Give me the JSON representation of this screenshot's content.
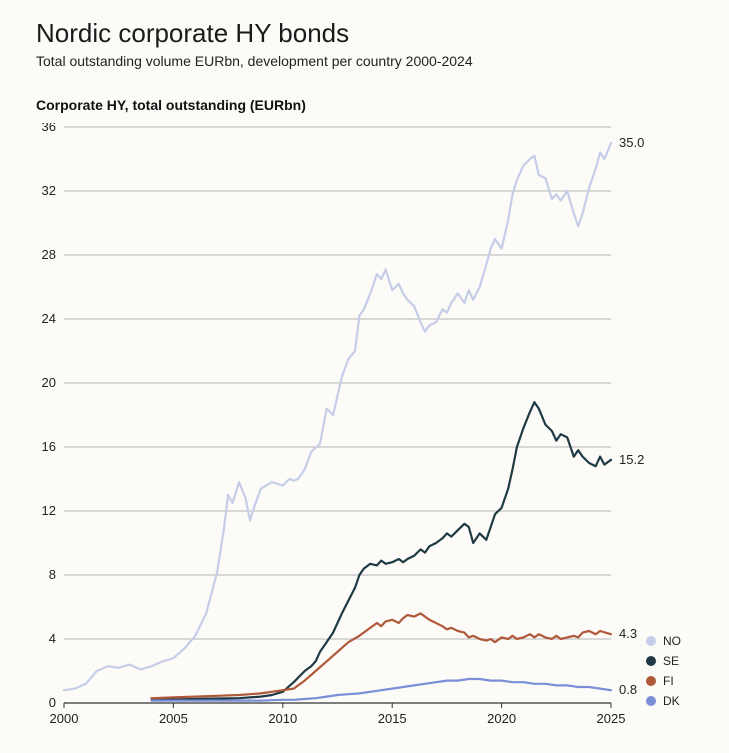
{
  "header": {
    "title": "Nordic corporate HY bonds",
    "subtitle": "Total outstanding volume EURbn, development per country 2000-2024"
  },
  "chart": {
    "type": "line",
    "title": "Corporate HY, total outstanding (EURbn)",
    "background_color": "#fcfbf8",
    "grid_color": "#b5b5b5",
    "axis_color": "#333333",
    "label_fontsize": 13,
    "title_fontsize": 14,
    "line_width": 2.2,
    "xlim": [
      2000,
      2025
    ],
    "ylim": [
      0,
      36
    ],
    "yticks": [
      0,
      4,
      8,
      12,
      16,
      20,
      24,
      28,
      32,
      36
    ],
    "xticks": [
      2000,
      2005,
      2010,
      2015,
      2020,
      2025
    ],
    "legend_position": "bottom-right",
    "series": [
      {
        "id": "NO",
        "label": "NO",
        "color": "#c6cde8",
        "end_value": "35.0",
        "points": [
          [
            2000,
            0.8
          ],
          [
            2000.5,
            0.9
          ],
          [
            2001,
            1.2
          ],
          [
            2001.5,
            2.0
          ],
          [
            2002,
            2.3
          ],
          [
            2002.5,
            2.2
          ],
          [
            2003,
            2.4
          ],
          [
            2003.5,
            2.1
          ],
          [
            2004,
            2.3
          ],
          [
            2004.5,
            2.6
          ],
          [
            2005,
            2.8
          ],
          [
            2005.5,
            3.4
          ],
          [
            2006,
            4.2
          ],
          [
            2006.5,
            5.6
          ],
          [
            2007,
            8.2
          ],
          [
            2007.3,
            10.8
          ],
          [
            2007.5,
            13.0
          ],
          [
            2007.7,
            12.5
          ],
          [
            2008,
            13.8
          ],
          [
            2008.3,
            12.8
          ],
          [
            2008.5,
            11.4
          ],
          [
            2008.7,
            12.3
          ],
          [
            2009,
            13.4
          ],
          [
            2009.5,
            13.8
          ],
          [
            2010,
            13.6
          ],
          [
            2010.3,
            14.0
          ],
          [
            2010.5,
            13.9
          ],
          [
            2010.7,
            14.0
          ],
          [
            2011,
            14.6
          ],
          [
            2011.3,
            15.7
          ],
          [
            2011.7,
            16.2
          ],
          [
            2012,
            18.4
          ],
          [
            2012.3,
            18.0
          ],
          [
            2012.5,
            19.2
          ],
          [
            2012.7,
            20.4
          ],
          [
            2013,
            21.5
          ],
          [
            2013.3,
            22.0
          ],
          [
            2013.5,
            24.2
          ],
          [
            2013.7,
            24.6
          ],
          [
            2014,
            25.6
          ],
          [
            2014.3,
            26.8
          ],
          [
            2014.5,
            26.5
          ],
          [
            2014.7,
            27.1
          ],
          [
            2015,
            25.8
          ],
          [
            2015.3,
            26.2
          ],
          [
            2015.5,
            25.6
          ],
          [
            2015.7,
            25.2
          ],
          [
            2016,
            24.8
          ],
          [
            2016.3,
            23.8
          ],
          [
            2016.5,
            23.2
          ],
          [
            2016.7,
            23.6
          ],
          [
            2017,
            23.8
          ],
          [
            2017.3,
            24.6
          ],
          [
            2017.5,
            24.4
          ],
          [
            2017.7,
            25.0
          ],
          [
            2018,
            25.6
          ],
          [
            2018.3,
            25.0
          ],
          [
            2018.5,
            25.8
          ],
          [
            2018.7,
            25.2
          ],
          [
            2019,
            26.0
          ],
          [
            2019.3,
            27.4
          ],
          [
            2019.5,
            28.4
          ],
          [
            2019.7,
            29.0
          ],
          [
            2020,
            28.4
          ],
          [
            2020.3,
            30.2
          ],
          [
            2020.5,
            31.8
          ],
          [
            2020.7,
            32.7
          ],
          [
            2021,
            33.6
          ],
          [
            2021.3,
            34.0
          ],
          [
            2021.5,
            34.2
          ],
          [
            2021.7,
            33.0
          ],
          [
            2022,
            32.8
          ],
          [
            2022.3,
            31.5
          ],
          [
            2022.5,
            31.8
          ],
          [
            2022.7,
            31.4
          ],
          [
            2023,
            32.0
          ],
          [
            2023.3,
            30.6
          ],
          [
            2023.5,
            29.8
          ],
          [
            2023.7,
            30.6
          ],
          [
            2024,
            32.2
          ],
          [
            2024.3,
            33.4
          ],
          [
            2024.5,
            34.4
          ],
          [
            2024.7,
            34.0
          ],
          [
            2025,
            35.0
          ]
        ]
      },
      {
        "id": "SE",
        "label": "SE",
        "color": "#1f3a44",
        "end_value": "15.2",
        "points": [
          [
            2004,
            0.25
          ],
          [
            2005,
            0.22
          ],
          [
            2006,
            0.25
          ],
          [
            2007,
            0.28
          ],
          [
            2008,
            0.3
          ],
          [
            2008.5,
            0.35
          ],
          [
            2009,
            0.4
          ],
          [
            2009.5,
            0.5
          ],
          [
            2010,
            0.7
          ],
          [
            2010.5,
            1.3
          ],
          [
            2011,
            2.0
          ],
          [
            2011.3,
            2.3
          ],
          [
            2011.5,
            2.6
          ],
          [
            2011.7,
            3.2
          ],
          [
            2012,
            3.8
          ],
          [
            2012.3,
            4.4
          ],
          [
            2012.5,
            5.0
          ],
          [
            2012.7,
            5.6
          ],
          [
            2013,
            6.4
          ],
          [
            2013.3,
            7.2
          ],
          [
            2013.5,
            8.0
          ],
          [
            2013.7,
            8.4
          ],
          [
            2014,
            8.7
          ],
          [
            2014.3,
            8.6
          ],
          [
            2014.5,
            8.9
          ],
          [
            2014.7,
            8.7
          ],
          [
            2015,
            8.8
          ],
          [
            2015.3,
            9.0
          ],
          [
            2015.5,
            8.8
          ],
          [
            2015.7,
            9.0
          ],
          [
            2016,
            9.2
          ],
          [
            2016.3,
            9.6
          ],
          [
            2016.5,
            9.4
          ],
          [
            2016.7,
            9.8
          ],
          [
            2017,
            10.0
          ],
          [
            2017.3,
            10.3
          ],
          [
            2017.5,
            10.6
          ],
          [
            2017.7,
            10.4
          ],
          [
            2018,
            10.8
          ],
          [
            2018.3,
            11.2
          ],
          [
            2018.5,
            11.0
          ],
          [
            2018.7,
            10.0
          ],
          [
            2019,
            10.6
          ],
          [
            2019.3,
            10.2
          ],
          [
            2019.5,
            11.0
          ],
          [
            2019.7,
            11.8
          ],
          [
            2020,
            12.2
          ],
          [
            2020.3,
            13.4
          ],
          [
            2020.5,
            14.6
          ],
          [
            2020.7,
            16.0
          ],
          [
            2021,
            17.2
          ],
          [
            2021.3,
            18.2
          ],
          [
            2021.5,
            18.8
          ],
          [
            2021.7,
            18.4
          ],
          [
            2022,
            17.4
          ],
          [
            2022.3,
            17.0
          ],
          [
            2022.5,
            16.4
          ],
          [
            2022.7,
            16.8
          ],
          [
            2023,
            16.6
          ],
          [
            2023.3,
            15.4
          ],
          [
            2023.5,
            15.8
          ],
          [
            2023.7,
            15.4
          ],
          [
            2024,
            15.0
          ],
          [
            2024.3,
            14.8
          ],
          [
            2024.5,
            15.4
          ],
          [
            2024.7,
            14.9
          ],
          [
            2025,
            15.2
          ]
        ]
      },
      {
        "id": "FI",
        "label": "FI",
        "color": "#b0583a",
        "end_value": "4.3",
        "points": [
          [
            2004,
            0.3
          ],
          [
            2005,
            0.35
          ],
          [
            2006,
            0.4
          ],
          [
            2007,
            0.45
          ],
          [
            2008,
            0.5
          ],
          [
            2008.5,
            0.55
          ],
          [
            2009,
            0.6
          ],
          [
            2009.5,
            0.7
          ],
          [
            2010,
            0.8
          ],
          [
            2010.5,
            0.9
          ],
          [
            2011,
            1.4
          ],
          [
            2011.5,
            2.0
          ],
          [
            2012,
            2.6
          ],
          [
            2012.5,
            3.2
          ],
          [
            2013,
            3.8
          ],
          [
            2013.5,
            4.2
          ],
          [
            2014,
            4.7
          ],
          [
            2014.3,
            5.0
          ],
          [
            2014.5,
            4.8
          ],
          [
            2014.7,
            5.1
          ],
          [
            2015,
            5.2
          ],
          [
            2015.3,
            5.0
          ],
          [
            2015.5,
            5.3
          ],
          [
            2015.7,
            5.5
          ],
          [
            2016,
            5.4
          ],
          [
            2016.3,
            5.6
          ],
          [
            2016.5,
            5.4
          ],
          [
            2016.7,
            5.2
          ],
          [
            2017,
            5.0
          ],
          [
            2017.3,
            4.8
          ],
          [
            2017.5,
            4.6
          ],
          [
            2017.7,
            4.7
          ],
          [
            2018,
            4.5
          ],
          [
            2018.3,
            4.4
          ],
          [
            2018.5,
            4.1
          ],
          [
            2018.7,
            4.2
          ],
          [
            2019,
            4.0
          ],
          [
            2019.3,
            3.9
          ],
          [
            2019.5,
            4.0
          ],
          [
            2019.7,
            3.8
          ],
          [
            2020,
            4.1
          ],
          [
            2020.3,
            4.0
          ],
          [
            2020.5,
            4.2
          ],
          [
            2020.7,
            4.0
          ],
          [
            2021,
            4.1
          ],
          [
            2021.3,
            4.3
          ],
          [
            2021.5,
            4.1
          ],
          [
            2021.7,
            4.3
          ],
          [
            2022,
            4.1
          ],
          [
            2022.3,
            4.0
          ],
          [
            2022.5,
            4.2
          ],
          [
            2022.7,
            4.0
          ],
          [
            2023,
            4.1
          ],
          [
            2023.3,
            4.2
          ],
          [
            2023.5,
            4.1
          ],
          [
            2023.7,
            4.4
          ],
          [
            2024,
            4.5
          ],
          [
            2024.3,
            4.3
          ],
          [
            2024.5,
            4.5
          ],
          [
            2025,
            4.3
          ]
        ]
      },
      {
        "id": "DK",
        "label": "DK",
        "color": "#7b8fd9",
        "end_value": "0.8",
        "points": [
          [
            2004,
            0.15
          ],
          [
            2005,
            0.15
          ],
          [
            2006,
            0.15
          ],
          [
            2007,
            0.15
          ],
          [
            2008,
            0.15
          ],
          [
            2009,
            0.15
          ],
          [
            2010,
            0.2
          ],
          [
            2010.5,
            0.2
          ],
          [
            2011,
            0.25
          ],
          [
            2011.5,
            0.3
          ],
          [
            2012,
            0.4
          ],
          [
            2012.5,
            0.5
          ],
          [
            2013,
            0.55
          ],
          [
            2013.5,
            0.6
          ],
          [
            2014,
            0.7
          ],
          [
            2014.5,
            0.8
          ],
          [
            2015,
            0.9
          ],
          [
            2015.5,
            1.0
          ],
          [
            2016,
            1.1
          ],
          [
            2016.5,
            1.2
          ],
          [
            2017,
            1.3
          ],
          [
            2017.5,
            1.4
          ],
          [
            2018,
            1.4
          ],
          [
            2018.5,
            1.5
          ],
          [
            2019,
            1.5
          ],
          [
            2019.5,
            1.4
          ],
          [
            2020,
            1.4
          ],
          [
            2020.5,
            1.3
          ],
          [
            2021,
            1.3
          ],
          [
            2021.5,
            1.2
          ],
          [
            2022,
            1.2
          ],
          [
            2022.5,
            1.1
          ],
          [
            2023,
            1.1
          ],
          [
            2023.5,
            1.0
          ],
          [
            2024,
            1.0
          ],
          [
            2024.5,
            0.9
          ],
          [
            2025,
            0.8
          ]
        ]
      }
    ],
    "legend": [
      {
        "label": "NO",
        "color": "#c6cde8"
      },
      {
        "label": "SE",
        "color": "#1f3a44"
      },
      {
        "label": "FI",
        "color": "#b0583a"
      },
      {
        "label": "DK",
        "color": "#7b8fd9"
      }
    ]
  }
}
